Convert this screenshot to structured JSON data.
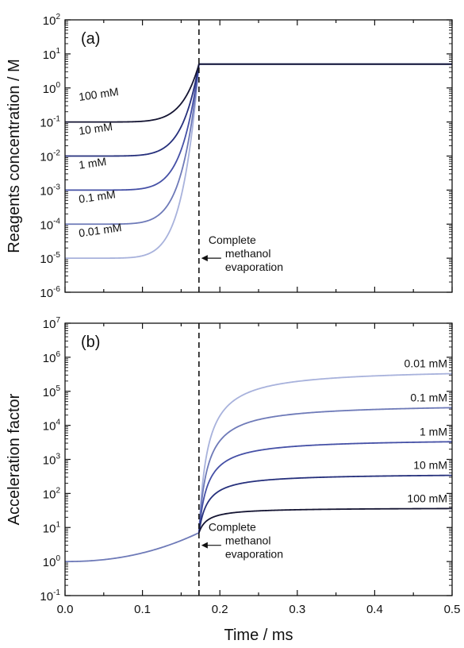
{
  "chart_data": [
    {
      "panel": "(a)",
      "type": "line",
      "ylabel": "Reagents concentration / M",
      "xlim": [
        0,
        0.5
      ],
      "ylim_log10": [
        -6,
        2
      ],
      "yscale": "log",
      "xticks": [
        "0.0",
        "0.1",
        "0.2",
        "0.3",
        "0.4",
        "0.5"
      ],
      "yticks": [
        {
          "base": "10",
          "exp": "-6"
        },
        {
          "base": "10",
          "exp": "-5"
        },
        {
          "base": "10",
          "exp": "-4"
        },
        {
          "base": "10",
          "exp": "-3"
        },
        {
          "base": "10",
          "exp": "-2"
        },
        {
          "base": "10",
          "exp": "-1"
        },
        {
          "base": "10",
          "exp": "0"
        },
        {
          "base": "10",
          "exp": "1"
        },
        {
          "base": "10",
          "exp": "2"
        }
      ],
      "evaporation_time_ms": 0.173,
      "final_concentration_M": 5.0,
      "series": [
        {
          "label": "100 mM",
          "initial_M": 0.1,
          "color": "#141432"
        },
        {
          "label": "10 mM",
          "initial_M": 0.01,
          "color": "#26307c"
        },
        {
          "label": "1 mM",
          "initial_M": 0.001,
          "color": "#4550a6"
        },
        {
          "label": "0.1 mM",
          "initial_M": 0.0001,
          "color": "#6e7ab8"
        },
        {
          "label": "0.01 mM",
          "initial_M": 1e-05,
          "color": "#a8b2dc"
        }
      ],
      "annotation": {
        "lines": [
          "Complete",
          "methanol",
          "evaporation"
        ],
        "arrow_y_M": 1e-05
      }
    },
    {
      "panel": "(b)",
      "type": "line",
      "ylabel": "Acceleration factor",
      "xlabel": "Time / ms",
      "xlim": [
        0,
        0.5
      ],
      "ylim_log10": [
        -1,
        7
      ],
      "yscale": "log",
      "xticks": [
        "0.0",
        "0.1",
        "0.2",
        "0.3",
        "0.4",
        "0.5"
      ],
      "yticks": [
        {
          "base": "10",
          "exp": "-1"
        },
        {
          "base": "10",
          "exp": "0"
        },
        {
          "base": "10",
          "exp": "1"
        },
        {
          "base": "10",
          "exp": "2"
        },
        {
          "base": "10",
          "exp": "3"
        },
        {
          "base": "10",
          "exp": "4"
        },
        {
          "base": "10",
          "exp": "5"
        },
        {
          "base": "10",
          "exp": "6"
        },
        {
          "base": "10",
          "exp": "7"
        }
      ],
      "evaporation_time_ms": 0.173,
      "factor_at_evaporation": 7,
      "series": [
        {
          "label": "0.01 mM",
          "final_factor": 330000,
          "color": "#a8b2dc"
        },
        {
          "label": "0.1 mM",
          "final_factor": 33000,
          "color": "#6e7ab8"
        },
        {
          "label": "1 mM",
          "final_factor": 3300,
          "color": "#4550a6"
        },
        {
          "label": "10 mM",
          "final_factor": 340,
          "color": "#26307c"
        },
        {
          "label": "100 mM",
          "final_factor": 36,
          "color": "#141432"
        }
      ],
      "annotation": {
        "lines": [
          "Complete",
          "methanol",
          "evaporation"
        ],
        "arrow_y_factor": 3
      }
    }
  ]
}
